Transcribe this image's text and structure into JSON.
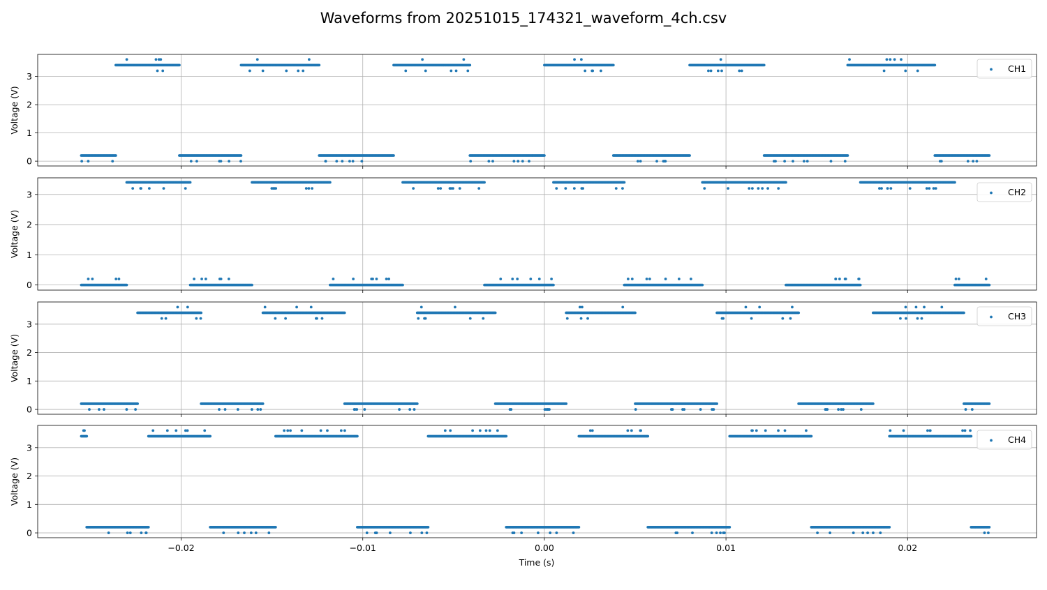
{
  "figure": {
    "title": "Waveforms from 20251015_174321_waveform_4ch.csv",
    "xlabel": "Time (s)",
    "marker_color": "#1f77b4",
    "grid_color": "#b0b0b0"
  },
  "chart_data": {
    "type": "scatter",
    "x_range": [
      -0.0279,
      0.0271
    ],
    "x_ticks": [
      -0.02,
      -0.01,
      0.0,
      0.01,
      0.02
    ],
    "x_tick_labels": [
      "−0.02",
      "−0.01",
      "0.00",
      "0.01",
      "0.02"
    ],
    "data_x_range": [
      -0.0255,
      0.0245
    ],
    "grid": true,
    "legend_placement": "upper right",
    "subplots": [
      {
        "channel": "CH1",
        "ylabel": "Voltage (V)",
        "ylim": [
          -0.17,
          3.78
        ],
        "y_ticks": [
          0,
          1,
          2,
          3
        ],
        "low_level": 0.2,
        "high_level": 3.4,
        "low_alt": 0.0,
        "high_alts": [
          3.2,
          3.6
        ],
        "high_intervals": [
          [
            -0.0236,
            -0.0201
          ],
          [
            -0.0167,
            -0.0124
          ],
          [
            -0.0083,
            -0.0041
          ],
          [
            0.0,
            0.0038
          ],
          [
            0.008,
            0.0121
          ],
          [
            0.0167,
            0.0215
          ]
        ],
        "low_intervals": [
          [
            -0.0255,
            -0.0236
          ],
          [
            -0.0201,
            -0.0167
          ],
          [
            -0.0124,
            -0.0083
          ],
          [
            -0.0041,
            0.0
          ],
          [
            0.0038,
            0.008
          ],
          [
            0.0121,
            0.0167
          ],
          [
            0.0215,
            0.0245
          ]
        ]
      },
      {
        "channel": "CH2",
        "ylabel": "Voltage (V)",
        "ylim": [
          -0.17,
          3.55
        ],
        "y_ticks": [
          0,
          1,
          2,
          3
        ],
        "low_level": 0.0,
        "high_level": 3.4,
        "low_alt": 0.2,
        "high_alts": [
          3.2
        ],
        "high_intervals": [
          [
            -0.023,
            -0.0195
          ],
          [
            -0.0161,
            -0.0118
          ],
          [
            -0.0078,
            -0.0033
          ],
          [
            0.0005,
            0.0044
          ],
          [
            0.0087,
            0.0133
          ],
          [
            0.0174,
            0.0226
          ]
        ],
        "low_intervals": [
          [
            -0.0255,
            -0.023
          ],
          [
            -0.0195,
            -0.0161
          ],
          [
            -0.0118,
            -0.0078
          ],
          [
            -0.0033,
            0.0005
          ],
          [
            0.0044,
            0.0087
          ],
          [
            0.0133,
            0.0174
          ],
          [
            0.0226,
            0.0245
          ]
        ]
      },
      {
        "channel": "CH3",
        "ylabel": "Voltage (V)",
        "ylim": [
          -0.17,
          3.78
        ],
        "y_ticks": [
          0,
          1,
          2,
          3
        ],
        "low_level": 0.2,
        "high_level": 3.4,
        "low_alt": 0.0,
        "high_alts": [
          3.2,
          3.6
        ],
        "high_intervals": [
          [
            -0.0224,
            -0.0189
          ],
          [
            -0.0155,
            -0.011
          ],
          [
            -0.007,
            -0.0027
          ],
          [
            0.0012,
            0.005
          ],
          [
            0.0095,
            0.014
          ],
          [
            0.0181,
            0.0231
          ]
        ],
        "low_intervals": [
          [
            -0.0255,
            -0.0224
          ],
          [
            -0.0189,
            -0.0155
          ],
          [
            -0.011,
            -0.007
          ],
          [
            -0.0027,
            0.0012
          ],
          [
            0.005,
            0.0095
          ],
          [
            0.014,
            0.0181
          ],
          [
            0.0231,
            0.0245
          ]
        ]
      },
      {
        "channel": "CH4",
        "ylabel": "Voltage (V)",
        "ylim": [
          -0.17,
          3.78
        ],
        "y_ticks": [
          0,
          1,
          2,
          3
        ],
        "low_level": 0.2,
        "high_level": 3.4,
        "low_alt": 0.0,
        "high_alts": [
          3.6
        ],
        "high_intervals": [
          [
            -0.0255,
            -0.0252
          ],
          [
            -0.0218,
            -0.0184
          ],
          [
            -0.0148,
            -0.0103
          ],
          [
            -0.0064,
            -0.0021
          ],
          [
            0.0019,
            0.0057
          ],
          [
            0.0102,
            0.0147
          ],
          [
            0.019,
            0.0235
          ]
        ],
        "low_intervals": [
          [
            -0.0252,
            -0.0218
          ],
          [
            -0.0184,
            -0.0148
          ],
          [
            -0.0103,
            -0.0064
          ],
          [
            -0.0021,
            0.0019
          ],
          [
            0.0057,
            0.0102
          ],
          [
            0.0147,
            0.019
          ],
          [
            0.0235,
            0.0245
          ]
        ]
      }
    ]
  }
}
